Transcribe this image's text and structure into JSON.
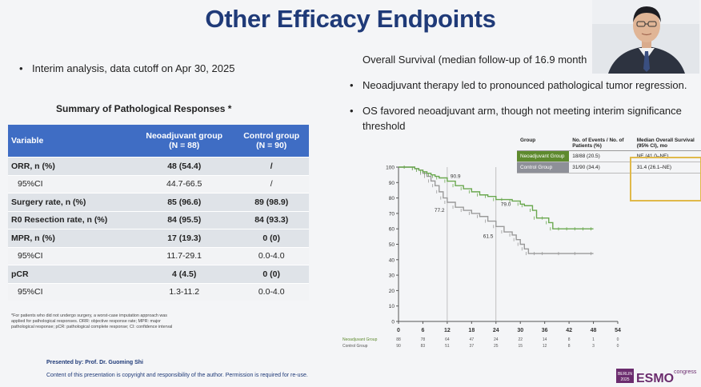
{
  "slide": {
    "title": "Other Efficacy Endpoints",
    "left_bullet": "Interim analysis, data cutoff on Apr 30, 2025",
    "right_bullets": [
      "Overall Survival (median follow-up of 16.9 month",
      "Neoadjuvant therapy led to pronounced pathological tumor regression.",
      "OS favored neoadjuvant arm, though not meeting interim significance",
      "threshold"
    ]
  },
  "table": {
    "title": "Summary of Pathological Responses *",
    "headers": {
      "variable": "Variable",
      "neo": "Neoadjuvant group",
      "neo_n": "(N = 88)",
      "ctl": "Control group",
      "ctl_n": "(N = 90)"
    },
    "rows": [
      {
        "label": "ORR, n (%)",
        "neo": "48 (54.4)",
        "ctl": "/"
      },
      {
        "label": "95%CI",
        "neo": "44.7-66.5",
        "ctl": "/"
      },
      {
        "label": "Surgery rate, n (%)",
        "neo": "85 (96.6)",
        "ctl": "89 (98.9)"
      },
      {
        "label": "R0 Resection rate, n (%)",
        "neo": "84 (95.5)",
        "ctl": "84 (93.3)"
      },
      {
        "label": "MPR, n (%)",
        "neo": "17 (19.3)",
        "ctl": "0 (0)"
      },
      {
        "label": "95%CI",
        "neo": "11.7-29.1",
        "ctl": "0.0-4.0"
      },
      {
        "label": "pCR",
        "neo": "4 (4.5)",
        "ctl": "0 (0)"
      },
      {
        "label": "95%CI",
        "neo": "1.3-11.2",
        "ctl": "0.0-4.0"
      }
    ],
    "footnote": "*For patients who did not undergo surgery, a worst-case imputation approach was applied for pathological responses. ORR: objective response rate; MPR: major pathological response; pCR: pathological complete response; CI: confidence interval"
  },
  "km_legend": {
    "headers": [
      "Group",
      "No. of Events / No. of Patients (%)",
      "Median Overall Survival (95% CI), mo"
    ],
    "rows": [
      {
        "group": "Neoadjuvant Group",
        "events": "18/88 (20.5)",
        "median": "NE (41.0–NE)"
      },
      {
        "group": "Control Group",
        "events": "31/90 (34.4)",
        "median": "31.4 (26.1–NE)"
      }
    ]
  },
  "chart_data": {
    "type": "line",
    "x_ticks": [
      0,
      6,
      12,
      18,
      24,
      30,
      36,
      42,
      48,
      54
    ],
    "y_ticks": [
      0,
      10,
      20,
      30,
      40,
      50,
      60,
      70,
      80,
      90,
      100
    ],
    "xlim": [
      0,
      54
    ],
    "ylim": [
      0,
      100
    ],
    "annotations": [
      {
        "text": "90.9",
        "x": 12,
        "y": 90.9
      },
      {
        "text": "77.2",
        "x": 12,
        "y": 77.2
      },
      {
        "text": "79.0",
        "x": 24,
        "y": 79.0
      },
      {
        "text": "61.5",
        "x": 24,
        "y": 61.5
      }
    ],
    "series": [
      {
        "name": "Neoadjuvant Group",
        "color": "#6aa84f",
        "x": [
          0,
          2,
          4,
          5,
          6,
          7,
          8,
          9,
          10,
          12,
          14,
          16,
          18,
          20,
          22,
          24,
          26,
          28,
          30,
          31,
          33,
          34,
          36,
          37,
          38,
          40,
          42,
          44,
          46,
          48
        ],
        "y": [
          100,
          100,
          99,
          98,
          97,
          96,
          95,
          94,
          93,
          90.9,
          88,
          86,
          84,
          82,
          81,
          79,
          79,
          78,
          76,
          75,
          72,
          67,
          67,
          64,
          60,
          60,
          60,
          60,
          60,
          60
        ]
      },
      {
        "name": "Control Group",
        "color": "#9a9a9a",
        "x": [
          0,
          2,
          4,
          5,
          6,
          7,
          8,
          9,
          10,
          11,
          12,
          14,
          16,
          18,
          20,
          22,
          24,
          26,
          28,
          29,
          30,
          31,
          32,
          34,
          36,
          40,
          44,
          48
        ],
        "y": [
          100,
          100,
          99,
          98,
          96,
          94,
          91,
          88,
          84,
          80,
          77.2,
          74,
          72,
          70,
          68,
          65,
          61.5,
          58,
          56,
          53,
          50,
          47,
          44,
          44,
          44,
          44,
          44,
          44
        ]
      }
    ],
    "risk_table": {
      "rows": [
        {
          "name": "Neoadjuvant Group",
          "values": [
            "88",
            "78",
            "64",
            "47",
            "24",
            "22",
            "14",
            "8",
            "1",
            "0"
          ]
        },
        {
          "name": "Control Group",
          "values": [
            "90",
            "83",
            "51",
            "37",
            "25",
            "15",
            "12",
            "8",
            "3",
            "0"
          ]
        }
      ]
    }
  },
  "presented_by": "Presented by: Prof. Dr. Guoming Shi",
  "copyright": "Content of this presentation is copyright and responsibility of the author. Permission is required for re-use.",
  "branding": {
    "city": "BERLIN",
    "year": "2025",
    "logo": "ESMO",
    "suffix": "congress"
  }
}
